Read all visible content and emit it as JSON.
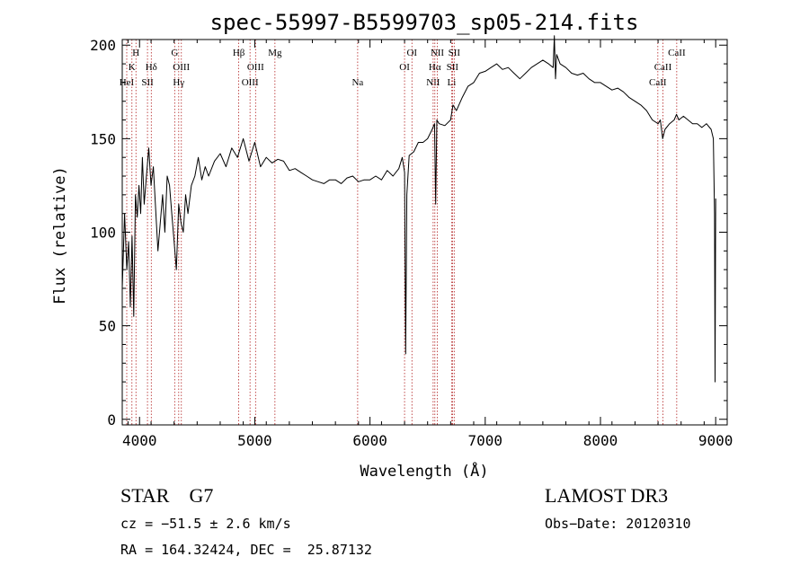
{
  "chart_data": {
    "type": "line",
    "title": "spec-55997-B5599703_sp05-214.fits",
    "xlabel": "Wavelength (Å)",
    "ylabel": "Flux (relative)",
    "xlim": [
      3850,
      9100
    ],
    "ylim": [
      -3,
      203
    ],
    "xticks": [
      4000,
      5000,
      6000,
      7000,
      8000,
      9000
    ],
    "yticks": [
      0,
      50,
      100,
      150,
      200
    ],
    "series": [
      {
        "name": "flux",
        "color": "#000000",
        "x": [
          3850,
          3870,
          3890,
          3905,
          3920,
          3935,
          3950,
          3965,
          3980,
          3995,
          4010,
          4025,
          4040,
          4060,
          4080,
          4100,
          4120,
          4140,
          4160,
          4180,
          4200,
          4220,
          4240,
          4260,
          4280,
          4300,
          4320,
          4340,
          4360,
          4380,
          4400,
          4420,
          4450,
          4480,
          4510,
          4540,
          4570,
          4600,
          4650,
          4700,
          4750,
          4800,
          4850,
          4900,
          4950,
          5000,
          5050,
          5100,
          5150,
          5200,
          5250,
          5300,
          5350,
          5400,
          5450,
          5500,
          5550,
          5600,
          5650,
          5700,
          5750,
          5800,
          5850,
          5900,
          5950,
          6000,
          6050,
          6100,
          6150,
          6200,
          6250,
          6280,
          6300,
          6310,
          6320,
          6340,
          6380,
          6420,
          6460,
          6500,
          6540,
          6560,
          6570,
          6580,
          6600,
          6650,
          6700,
          6720,
          6750,
          6800,
          6850,
          6900,
          6950,
          7000,
          7050,
          7100,
          7150,
          7200,
          7250,
          7300,
          7350,
          7400,
          7450,
          7500,
          7550,
          7590,
          7600,
          7610,
          7620,
          7650,
          7700,
          7750,
          7800,
          7850,
          7900,
          7950,
          8000,
          8050,
          8100,
          8150,
          8200,
          8250,
          8300,
          8350,
          8400,
          8450,
          8500,
          8520,
          8540,
          8560,
          8600,
          8640,
          8660,
          8680,
          8720,
          8760,
          8800,
          8840,
          8880,
          8920,
          8960,
          8980,
          8990,
          8995,
          9000
        ],
        "y": [
          70,
          110,
          80,
          95,
          60,
          98,
          55,
          120,
          108,
          125,
          110,
          140,
          115,
          130,
          145,
          125,
          135,
          112,
          90,
          105,
          120,
          100,
          130,
          125,
          110,
          95,
          80,
          115,
          105,
          100,
          120,
          110,
          125,
          130,
          140,
          128,
          135,
          130,
          138,
          142,
          135,
          145,
          140,
          150,
          138,
          148,
          135,
          140,
          137,
          139,
          138,
          133,
          134,
          132,
          130,
          128,
          127,
          126,
          128,
          128,
          126,
          129,
          130,
          127,
          128,
          128,
          130,
          128,
          133,
          130,
          134,
          140,
          132,
          35,
          120,
          141,
          143,
          148,
          148,
          150,
          155,
          158,
          115,
          160,
          158,
          157,
          160,
          168,
          165,
          172,
          178,
          180,
          185,
          186,
          188,
          190,
          187,
          188,
          185,
          182,
          185,
          188,
          190,
          192,
          190,
          188,
          205,
          182,
          195,
          190,
          188,
          185,
          184,
          185,
          182,
          180,
          180,
          178,
          176,
          177,
          175,
          172,
          170,
          168,
          165,
          160,
          158,
          160,
          150,
          155,
          158,
          160,
          163,
          160,
          162,
          160,
          158,
          158,
          156,
          158,
          155,
          150,
          110,
          20,
          118
        ]
      }
    ],
    "lines": [
      {
        "w": 3889,
        "label": "HeI",
        "row": 3
      },
      {
        "w": 3934,
        "label": "K",
        "row": 2
      },
      {
        "w": 3969,
        "label": "H",
        "row": 1
      },
      {
        "w": 4069,
        "label": "SII",
        "row": 3
      },
      {
        "w": 4102,
        "label": "Hδ",
        "row": 2
      },
      {
        "w": 4305,
        "label": "G",
        "row": 1
      },
      {
        "w": 4340,
        "label": "Hγ",
        "row": 3
      },
      {
        "w": 4363,
        "label": "OIII",
        "row": 2
      },
      {
        "w": 4861,
        "label": "Hβ",
        "row": 1
      },
      {
        "w": 4959,
        "label": "OIII",
        "row": 3
      },
      {
        "w": 5007,
        "label": "OIII",
        "row": 2
      },
      {
        "w": 5175,
        "label": "Mg",
        "row": 1
      },
      {
        "w": 5893,
        "label": "Na",
        "row": 3
      },
      {
        "w": 6300,
        "label": "OI",
        "row": 2
      },
      {
        "w": 6364,
        "label": "OI",
        "row": 1
      },
      {
        "w": 6548,
        "label": "NII",
        "row": 3
      },
      {
        "w": 6563,
        "label": "Hα",
        "row": 2
      },
      {
        "w": 6584,
        "label": "NII",
        "row": 1
      },
      {
        "w": 6708,
        "label": "Li",
        "row": 3
      },
      {
        "w": 6716,
        "label": "SII",
        "row": 2
      },
      {
        "w": 6731,
        "label": "SII",
        "row": 1
      },
      {
        "w": 8498,
        "label": "CaII",
        "row": 3
      },
      {
        "w": 8542,
        "label": "CaII",
        "row": 2
      },
      {
        "w": 8662,
        "label": "CaII",
        "row": 1
      }
    ],
    "line_color": "#b22222"
  },
  "info": {
    "object": "STAR    G7",
    "survey": "LAMOST DR3",
    "cz": "cz = −51.5 ± 2.6 km/s",
    "obs_date": "Obs−Date: 20120310",
    "coords": "RA = 164.32424, DEC =  25.87132"
  }
}
